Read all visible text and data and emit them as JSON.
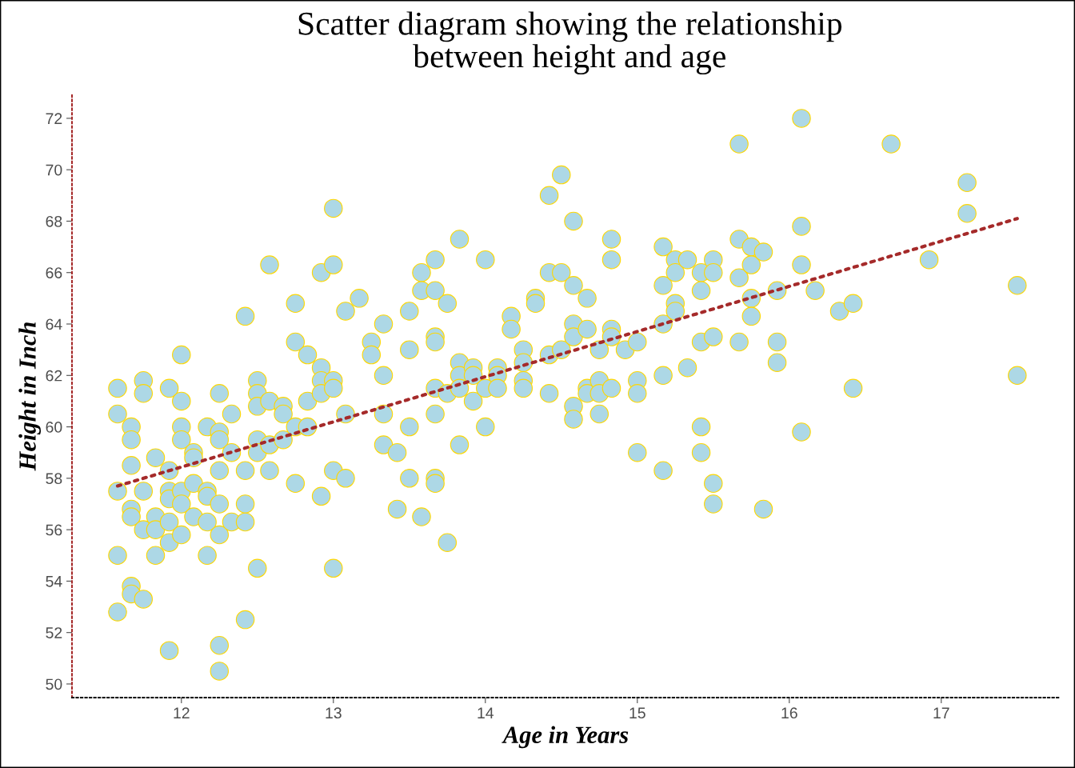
{
  "chart_data": {
    "type": "scatter",
    "title": "Scatter diagram showing the relationship\nbetween height and age",
    "xlabel": "Age in Years",
    "ylabel": "Height in Inch",
    "xlim": [
      11.28,
      17.78
    ],
    "ylim": [
      49.47,
      72.93
    ],
    "xticks": [
      12,
      13,
      14,
      15,
      16,
      17
    ],
    "yticks": [
      50,
      52,
      54,
      56,
      58,
      60,
      62,
      64,
      66,
      68,
      70,
      72
    ],
    "grid": false,
    "legend": false,
    "series": [
      {
        "color": "#add8e6",
        "marker": "circle",
        "x": [
          11.58,
          11.58,
          11.58,
          11.58,
          11.58,
          11.67,
          11.67,
          11.67,
          11.67,
          11.67,
          11.67,
          11.67,
          11.75,
          11.75,
          11.75,
          11.75,
          11.75,
          11.83,
          11.83,
          11.83,
          11.83,
          11.92,
          11.92,
          11.92,
          11.92,
          11.92,
          11.92,
          11.92,
          12,
          12,
          12,
          12,
          12,
          12,
          12,
          12.08,
          12.08,
          12.08,
          12.08,
          12.17,
          12.17,
          12.17,
          12.17,
          12.17,
          12.25,
          12.25,
          12.25,
          12.25,
          12.25,
          12.25,
          12.25,
          12.25,
          12.33,
          12.33,
          12.33,
          12.42,
          12.42,
          12.42,
          12.42,
          12.42,
          12.5,
          12.5,
          12.5,
          12.5,
          12.5,
          12.5,
          12.58,
          12.58,
          12.58,
          12.58,
          12.67,
          12.67,
          12.67,
          12.75,
          12.75,
          12.75,
          12.75,
          12.83,
          12.83,
          12.83,
          12.92,
          12.92,
          12.92,
          12.92,
          12.92,
          13,
          13,
          13,
          13,
          13,
          13,
          13.08,
          13.08,
          13.08,
          13.17,
          13.25,
          13.25,
          13.33,
          13.33,
          13.33,
          13.33,
          13.42,
          13.42,
          13.5,
          13.5,
          13.5,
          13.5,
          13.58,
          13.58,
          13.58,
          13.67,
          13.67,
          13.67,
          13.67,
          13.67,
          13.67,
          13.67,
          13.67,
          13.75,
          13.75,
          13.75,
          13.83,
          13.83,
          13.83,
          13.83,
          13.83,
          13.92,
          13.92,
          13.92,
          14,
          14,
          14,
          14.08,
          14.08,
          14.08,
          14.17,
          14.17,
          14.25,
          14.25,
          14.25,
          14.25,
          14.33,
          14.33,
          14.42,
          14.42,
          14.42,
          14.42,
          14.5,
          14.5,
          14.5,
          14.58,
          14.58,
          14.58,
          14.58,
          14.58,
          14.58,
          14.67,
          14.67,
          14.67,
          14.67,
          14.75,
          14.75,
          14.75,
          14.75,
          14.83,
          14.83,
          14.83,
          14.83,
          14.83,
          14.92,
          15,
          15,
          15,
          15,
          15.17,
          15.17,
          15.17,
          15.17,
          15.17,
          15.25,
          15.25,
          15.25,
          15.25,
          15.33,
          15.33,
          15.42,
          15.42,
          15.42,
          15.42,
          15.42,
          15.5,
          15.5,
          15.5,
          15.5,
          15.5,
          15.67,
          15.67,
          15.67,
          15.67,
          15.75,
          15.75,
          15.75,
          15.75,
          15.83,
          15.83,
          15.92,
          15.92,
          15.92,
          16.08,
          16.08,
          16.08,
          16.08,
          16.17,
          16.33,
          16.42,
          16.42,
          16.67,
          16.92,
          17.17,
          17.17,
          17.5,
          17.5
        ],
        "values": [
          61.5,
          60.5,
          57.5,
          55,
          52.8,
          60,
          59.5,
          58.5,
          56.8,
          56.5,
          53.8,
          53.5,
          61.8,
          61.3,
          57.5,
          56,
          53.3,
          58.8,
          56.5,
          56,
          55,
          61.5,
          58.3,
          57.5,
          57.2,
          56.3,
          55.5,
          51.3,
          62.8,
          61,
          60,
          59.5,
          57.5,
          57,
          55.8,
          59,
          58.8,
          57.8,
          56.5,
          60,
          57.5,
          57.3,
          56.3,
          55,
          61.3,
          59.8,
          59.5,
          58.3,
          57,
          55.8,
          51.5,
          50.5,
          60.5,
          59,
          56.3,
          64.3,
          58.3,
          57,
          56.3,
          52.5,
          61.8,
          61.3,
          60.8,
          59.5,
          59,
          54.5,
          66.3,
          61,
          59.3,
          58.3,
          60.8,
          60.5,
          59.5,
          64.8,
          63.3,
          60,
          57.8,
          62.8,
          61,
          60,
          66,
          62.3,
          61.8,
          61.3,
          57.3,
          68.5,
          66.3,
          61.8,
          61.5,
          58.3,
          54.5,
          64.5,
          60.5,
          58,
          65,
          63.3,
          62.8,
          64,
          62,
          60.5,
          59.3,
          59,
          56.8,
          64.5,
          63,
          60,
          58,
          66,
          65.3,
          56.5,
          66.5,
          65.3,
          63.5,
          63.3,
          61.5,
          60.5,
          58,
          57.8,
          64.8,
          61.3,
          55.5,
          67.3,
          62.5,
          62,
          61.5,
          59.3,
          62.3,
          62,
          61,
          66.5,
          61.5,
          60,
          62.3,
          62,
          61.5,
          64.3,
          63.8,
          63,
          62.5,
          61.8,
          61.5,
          65,
          64.8,
          69,
          66,
          62.8,
          61.3,
          69.8,
          66,
          63,
          68,
          65.5,
          64,
          63.5,
          60.8,
          60.3,
          65,
          63.8,
          61.5,
          61.3,
          63,
          61.8,
          61.3,
          60.5,
          67.3,
          66.5,
          63.8,
          63.5,
          61.5,
          63,
          63.3,
          61.8,
          61.3,
          59,
          67,
          65.5,
          64,
          62,
          58.3,
          66.5,
          66,
          64.8,
          64.5,
          66.5,
          62.3,
          66,
          65.3,
          63.3,
          60,
          59,
          66.5,
          66,
          63.5,
          57.8,
          57,
          71,
          67.3,
          65.8,
          63.3,
          67,
          66.3,
          65,
          64.3,
          66.8,
          56.8,
          65.3,
          63.3,
          62.5,
          72,
          67.8,
          66.3,
          59.8,
          65.3,
          64.5,
          64.8,
          61.5,
          71,
          66.5,
          69.5,
          68.3,
          65.5,
          62
        ]
      },
      {
        "type": "line",
        "color": "#a52a2a",
        "line_style": "dotted",
        "marker": "none",
        "x": [
          11.58,
          17.5
        ],
        "values": [
          57.7,
          68.1
        ]
      }
    ]
  }
}
